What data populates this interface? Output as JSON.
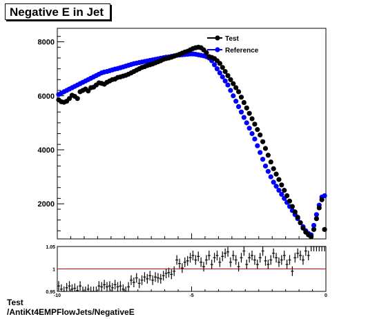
{
  "title": "Negative E in Jet",
  "footer": {
    "line1": "Test",
    "line2": "/AntiKt4EMPFlowJets/NegativeE"
  },
  "colors": {
    "test": "#000000",
    "reference": "#0000ff",
    "ratio_line": "#cc0000"
  },
  "chart_data": [
    {
      "type": "scatter",
      "title": "Negative E in Jet",
      "xlim": [
        -10,
        0
      ],
      "ylim": [
        700,
        8500
      ],
      "yticks": [
        "2000",
        "4000",
        "6000",
        "8000"
      ],
      "legend_position": "top-right",
      "grid": false,
      "series": [
        {
          "name": "Test",
          "x": [
            -9.95,
            -9.85,
            -9.75,
            -9.65,
            -9.55,
            -9.45,
            -9.35,
            -9.25,
            -9.15,
            -9.05,
            -8.95,
            -8.85,
            -8.75,
            -8.65,
            -8.55,
            -8.45,
            -8.35,
            -8.25,
            -8.15,
            -8.05,
            -7.95,
            -7.85,
            -7.75,
            -7.65,
            -7.55,
            -7.45,
            -7.35,
            -7.25,
            -7.15,
            -7.05,
            -6.95,
            -6.85,
            -6.75,
            -6.65,
            -6.55,
            -6.45,
            -6.35,
            -6.25,
            -6.15,
            -6.05,
            -5.95,
            -5.85,
            -5.75,
            -5.65,
            -5.55,
            -5.45,
            -5.35,
            -5.25,
            -5.15,
            -5.05,
            -4.95,
            -4.85,
            -4.75,
            -4.65,
            -4.55,
            -4.45,
            -4.35,
            -4.25,
            -4.15,
            -4.05,
            -3.95,
            -3.85,
            -3.75,
            -3.65,
            -3.55,
            -3.45,
            -3.35,
            -3.25,
            -3.15,
            -3.05,
            -2.95,
            -2.85,
            -2.75,
            -2.65,
            -2.55,
            -2.45,
            -2.35,
            -2.25,
            -2.15,
            -2.05,
            -1.95,
            -1.85,
            -1.75,
            -1.65,
            -1.55,
            -1.45,
            -1.35,
            -1.25,
            -1.15,
            -1.05,
            -0.95,
            -0.85,
            -0.75,
            -0.65,
            -0.55,
            -0.45,
            -0.35,
            -0.25,
            -0.15,
            -0.05
          ],
          "y": [
            5850,
            5780,
            5760,
            5800,
            5900,
            6020,
            5980,
            5900,
            6150,
            6200,
            6250,
            6180,
            6300,
            6320,
            6400,
            6480,
            6460,
            6430,
            6500,
            6550,
            6600,
            6620,
            6680,
            6700,
            6730,
            6760,
            6800,
            6850,
            6900,
            6950,
            7000,
            7050,
            7080,
            7120,
            7150,
            7180,
            7220,
            7260,
            7300,
            7350,
            7380,
            7400,
            7430,
            7470,
            7500,
            7540,
            7580,
            7620,
            7650,
            7700,
            7750,
            7780,
            7800,
            7780,
            7700,
            7600,
            7450,
            7420,
            7380,
            7300,
            7200,
            7050,
            6900,
            6750,
            6600,
            6450,
            6300,
            6150,
            5950,
            5750,
            5550,
            5350,
            5150,
            4950,
            4750,
            4550,
            4300,
            4050,
            3800,
            3550,
            3300,
            3100,
            2900,
            2700,
            2500,
            2300,
            2100,
            1900,
            1700,
            1500,
            1300,
            1100,
            950,
            850,
            780,
            1050,
            1450,
            1850,
            2150,
            1050
          ]
        },
        {
          "name": "Reference",
          "x": [
            -9.95,
            -9.85,
            -9.75,
            -9.65,
            -9.55,
            -9.45,
            -9.35,
            -9.25,
            -9.15,
            -9.05,
            -8.95,
            -8.85,
            -8.75,
            -8.65,
            -8.55,
            -8.45,
            -8.35,
            -8.25,
            -8.15,
            -8.05,
            -7.95,
            -7.85,
            -7.75,
            -7.65,
            -7.55,
            -7.45,
            -7.35,
            -7.25,
            -7.15,
            -7.05,
            -6.95,
            -6.85,
            -6.75,
            -6.65,
            -6.55,
            -6.45,
            -6.35,
            -6.25,
            -6.15,
            -6.05,
            -5.95,
            -5.85,
            -5.75,
            -5.65,
            -5.55,
            -5.45,
            -5.35,
            -5.25,
            -5.15,
            -5.05,
            -4.95,
            -4.85,
            -4.75,
            -4.65,
            -4.55,
            -4.45,
            -4.35,
            -4.25,
            -4.15,
            -4.05,
            -3.95,
            -3.85,
            -3.75,
            -3.65,
            -3.55,
            -3.45,
            -3.35,
            -3.25,
            -3.15,
            -3.05,
            -2.95,
            -2.85,
            -2.75,
            -2.65,
            -2.55,
            -2.45,
            -2.35,
            -2.25,
            -2.15,
            -2.05,
            -1.95,
            -1.85,
            -1.75,
            -1.65,
            -1.55,
            -1.45,
            -1.35,
            -1.25,
            -1.15,
            -1.05,
            -0.95,
            -0.85,
            -0.75,
            -0.65,
            -0.55,
            -0.45,
            -0.35,
            -0.25,
            -0.15,
            -0.05
          ],
          "y": [
            6050,
            6100,
            6150,
            6200,
            6250,
            6300,
            6350,
            6400,
            6450,
            6500,
            6550,
            6600,
            6650,
            6700,
            6750,
            6800,
            6850,
            6880,
            6900,
            6930,
            6960,
            6990,
            7010,
            7040,
            7070,
            7100,
            7130,
            7160,
            7190,
            7210,
            7230,
            7250,
            7270,
            7290,
            7310,
            7330,
            7350,
            7370,
            7390,
            7410,
            7430,
            7440,
            7460,
            7480,
            7500,
            7510,
            7520,
            7530,
            7540,
            7550,
            7550,
            7540,
            7520,
            7500,
            7480,
            7450,
            7400,
            7300,
            7150,
            7000,
            6850,
            6700,
            6550,
            6400,
            6200,
            6000,
            5800,
            5600,
            5400,
            5200,
            5000,
            4800,
            4600,
            4400,
            4150,
            3900,
            3650,
            3400,
            3200,
            3000,
            2800,
            2650,
            2500,
            2350,
            2200,
            2050,
            1900,
            1750,
            1600,
            1450,
            1300,
            1150,
            1000,
            900,
            850,
            1200,
            1600,
            1950,
            2250,
            2300
          ]
        }
      ]
    },
    {
      "type": "scatter",
      "xlim": [
        -10,
        0
      ],
      "ylim": [
        0.95,
        1.05
      ],
      "yticks": [
        "0.95",
        "1",
        "1.05"
      ],
      "xticks": [
        "-10",
        "-5",
        "0"
      ],
      "reference_line": 1,
      "series": [
        {
          "name": "",
          "x": [
            -9.95,
            -9.85,
            -9.75,
            -9.65,
            -9.55,
            -9.45,
            -9.35,
            -9.25,
            -9.15,
            -9.05,
            -8.95,
            -8.85,
            -8.75,
            -8.65,
            -8.55,
            -8.45,
            -8.35,
            -8.25,
            -8.15,
            -8.05,
            -7.95,
            -7.85,
            -7.75,
            -7.65,
            -7.55,
            -7.45,
            -7.35,
            -7.25,
            -7.15,
            -7.05,
            -6.95,
            -6.85,
            -6.75,
            -6.65,
            -6.55,
            -6.45,
            -6.35,
            -6.25,
            -6.15,
            -6.05,
            -5.95,
            -5.85,
            -5.75,
            -5.65,
            -5.55,
            -5.45,
            -5.35,
            -5.25,
            -5.15,
            -5.05,
            -4.95,
            -4.85,
            -4.75,
            -4.65,
            -4.55,
            -4.45,
            -4.35,
            -4.25,
            -4.15,
            -4.05,
            -3.95,
            -3.85,
            -3.75,
            -3.65,
            -3.55,
            -3.45,
            -3.35,
            -3.25,
            -3.15,
            -3.05,
            -2.95,
            -2.85,
            -2.75,
            -2.65,
            -2.55,
            -2.45,
            -2.35,
            -2.25,
            -2.15,
            -2.05,
            -1.95,
            -1.85,
            -1.75,
            -1.65,
            -1.55,
            -1.45,
            -1.35,
            -1.25,
            -1.15,
            -1.05,
            -0.95,
            -0.85,
            -0.75,
            -0.65,
            -0.55,
            -0.45,
            -0.35,
            -0.25,
            -0.15,
            -0.05
          ],
          "y": [
            0.962,
            0.955,
            0.948,
            0.958,
            0.962,
            0.955,
            0.957,
            0.952,
            0.962,
            0.94,
            0.95,
            0.955,
            0.945,
            0.942,
            0.945,
            0.962,
            0.96,
            0.965,
            0.96,
            0.962,
            0.958,
            0.965,
            0.96,
            0.962,
            0.955,
            0.945,
            0.96,
            0.975,
            0.97,
            0.98,
            0.968,
            0.975,
            0.982,
            0.978,
            0.985,
            0.975,
            0.982,
            0.98,
            0.978,
            0.985,
            0.99,
            0.992,
            0.988,
            0.995,
            1.02,
            1.012,
            1.002,
            1.015,
            1.018,
            1.025,
            1.03,
            1.02,
            1.028,
            1.015,
            1.005,
            1.02,
            1.03,
            1.01,
            1.025,
            1.03,
            1.015,
            1.028,
            1.035,
            1.038,
            1.015,
            1.03,
            1.02,
            1.005,
            1.025,
            1.04,
            1.01,
            1.025,
            1.03,
            1.02,
            1.01,
            1.025,
            1.04,
            1.018,
            1.01,
            1.02,
            1.035,
            1.025,
            1.015,
            1.02,
            1.03,
            1.01,
            1.02,
            0.995,
            1.025,
            1.035,
            1.03,
            1.02,
            1.04,
            1.03,
            1.05,
            1.05,
            1.05,
            1.05,
            1.05,
            1.05
          ]
        }
      ]
    }
  ]
}
